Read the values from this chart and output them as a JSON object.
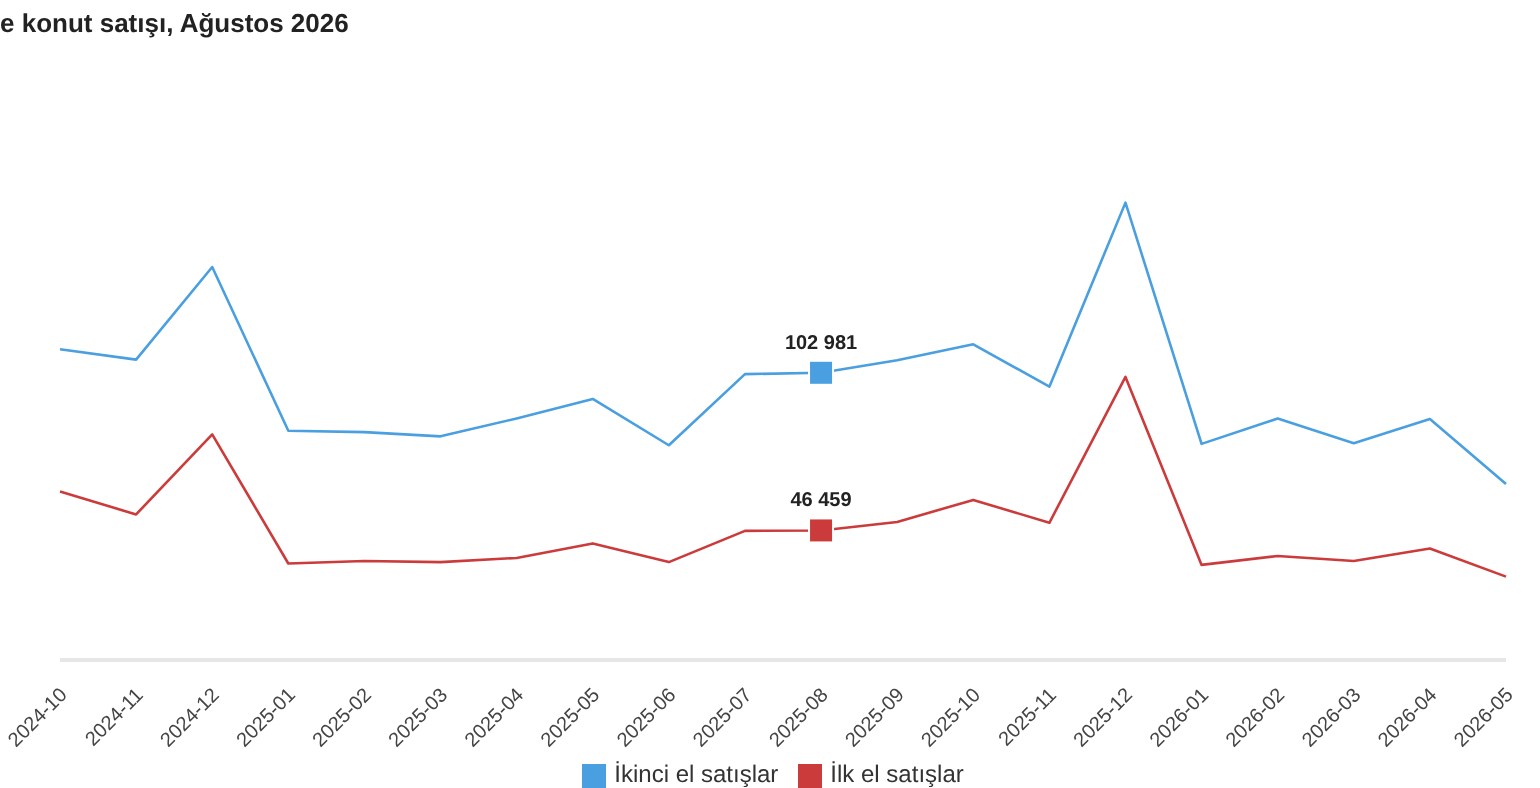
{
  "chart_data": {
    "type": "line",
    "title": "e konut satışı, Ağustos 2026",
    "categories": [
      "2024-10",
      "2024-11",
      "2024-12",
      "2025-01",
      "2025-02",
      "2025-03",
      "2025-04",
      "2025-05",
      "2025-06",
      "2025-07",
      "2025-08",
      "2025-09",
      "2025-10",
      "2025-11",
      "2025-12",
      "2026-01",
      "2026-02",
      "2026-03",
      "2026-04",
      "2026-05"
    ],
    "series": [
      {
        "name": "İlk el satışlar",
        "color": "#cc3b3b",
        "values": [
          60400,
          52200,
          80900,
          34600,
          35500,
          35100,
          36600,
          41800,
          35100,
          46300,
          46459,
          49500,
          57400,
          49200,
          101500,
          34100,
          37300,
          35500,
          40000,
          29900
        ],
        "value_labels": [
          null,
          null,
          null,
          null,
          null,
          null,
          null,
          null,
          null,
          null,
          "46 459",
          null,
          null,
          null,
          null,
          null,
          null,
          null,
          null,
          null
        ]
      },
      {
        "name": "İkinci el satışlar",
        "color": "#4a9fe0",
        "values": [
          111400,
          107700,
          140900,
          82200,
          81700,
          80200,
          86600,
          93600,
          77000,
          102500,
          102981,
          107500,
          113200,
          98000,
          164000,
          77500,
          86600,
          77700,
          86400,
          63100
        ],
        "value_labels": [
          null,
          null,
          null,
          null,
          null,
          null,
          null,
          null,
          null,
          null,
          "102 981",
          null,
          null,
          null,
          null,
          null,
          null,
          null,
          null,
          null
        ]
      }
    ],
    "tick_labels": "x",
    "grid": false,
    "legend": "bottom"
  }
}
